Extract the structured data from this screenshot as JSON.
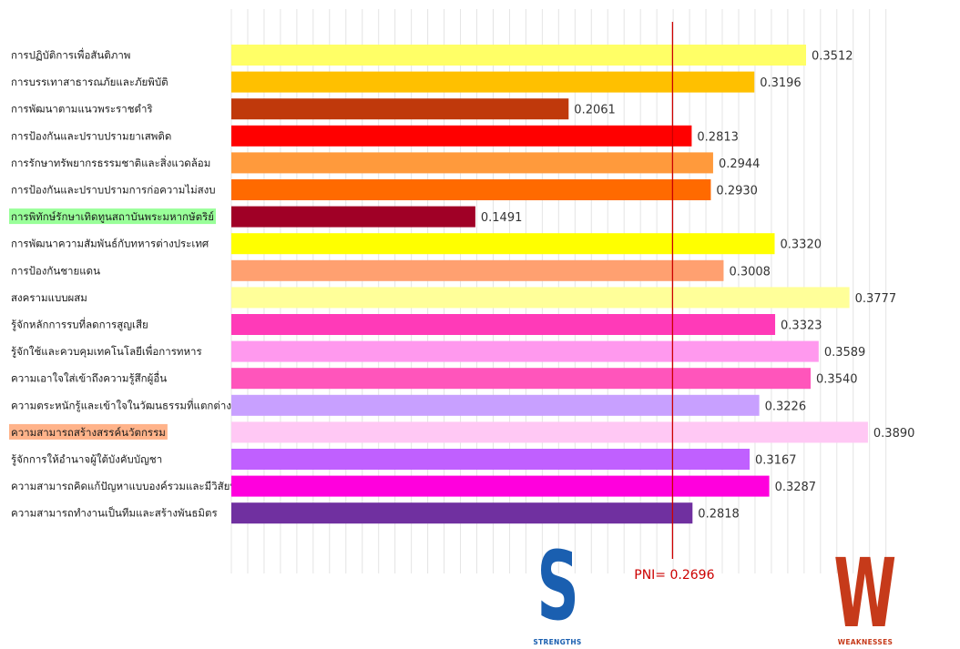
{
  "chart_data": {
    "type": "bar",
    "orientation": "horizontal",
    "categories": [
      "การปฏิบัติการเพื่อสันติภาพ",
      "การบรรเทาสาธารณภัยและภัยพิบัติ",
      "การพัฒนาตามแนวพระราชดำริ",
      "การป้องกันและปราบปรามยาเสพติด",
      "การรักษาทรัพยากรธรรมชาติและสิ่งแวดล้อม",
      "การป้องกันและปราบปรามการก่อความไม่สงบ",
      "การพิทักษ์รักษาเทิดทูนสถาบันพระมหากษัตริย์",
      "การพัฒนาความสัมพันธ์กับทหารต่างประเทศ",
      "การป้องกันชายแดน",
      "สงครามแบบผสม",
      "รู้จักหลักการรบที่ลดการสูญเสีย",
      "รู้จักใช้และควบคุมเทคโนโลยีเพื่อการทหาร",
      "ความเอาใจใส่เข้าถึงความรู้สึกผู้อื่น",
      "ความตระหนักรู้และเข้าใจในวัฒนธรรมที่แตกต่าง",
      "ความสามารถสร้างสรรค์นวัตกรรม",
      "รู้จักการให้อำนาจผู้ใต้บังคับบัญชา",
      "ความสามารถคิดแก้ปัญหาแบบองค์รวมและมีวิสัยทัศน์",
      "ความสามารถทำงานเป็นทีมและสร้างพันธมิตร"
    ],
    "values": [
      0.3512,
      0.3196,
      0.2061,
      0.2813,
      0.2944,
      0.293,
      0.1491,
      0.332,
      0.3008,
      0.3777,
      0.3323,
      0.3589,
      0.354,
      0.3226,
      0.389,
      0.3167,
      0.3287,
      0.2818
    ],
    "value_labels": [
      "0.3512",
      "0.3196",
      "0.2061",
      "0.2813",
      "0.2944",
      "0.2930",
      "0.1491",
      "0.3320",
      "0.3008",
      "0.3777",
      "0.3323",
      "0.3589",
      "0.3540",
      "0.3226",
      "0.3890",
      "0.3167",
      "0.3287",
      "0.2818"
    ],
    "colors": [
      "#ffff66",
      "#ffc000",
      "#c0390b",
      "#ff0000",
      "#ff9a3c",
      "#ff6a00",
      "#a00026",
      "#ffff00",
      "#ffa070",
      "#ffff99",
      "#ff3ab8",
      "#ff99ee",
      "#ff55bb",
      "#c8a0ff",
      "#ffc8f4",
      "#c060ff",
      "#ff00dd",
      "#7030a0"
    ],
    "label_highlights": [
      {
        "index": 6,
        "color": "#99ff99"
      },
      {
        "index": 14,
        "color": "#ffb38a"
      }
    ],
    "xlim": [
      0,
      0.4
    ],
    "grid": true,
    "reference_line": {
      "value": 0.2696,
      "label": "PNI= 0.2696",
      "color": "#cc0000"
    },
    "title": "",
    "xlabel": "",
    "ylabel": ""
  },
  "strengths": {
    "letter": "S",
    "caption": "STRENGTHS",
    "color": "#1a5fb0"
  },
  "weaknesses": {
    "letter": "W",
    "caption": "WEAKNESSES",
    "color": "#c63a1a"
  }
}
